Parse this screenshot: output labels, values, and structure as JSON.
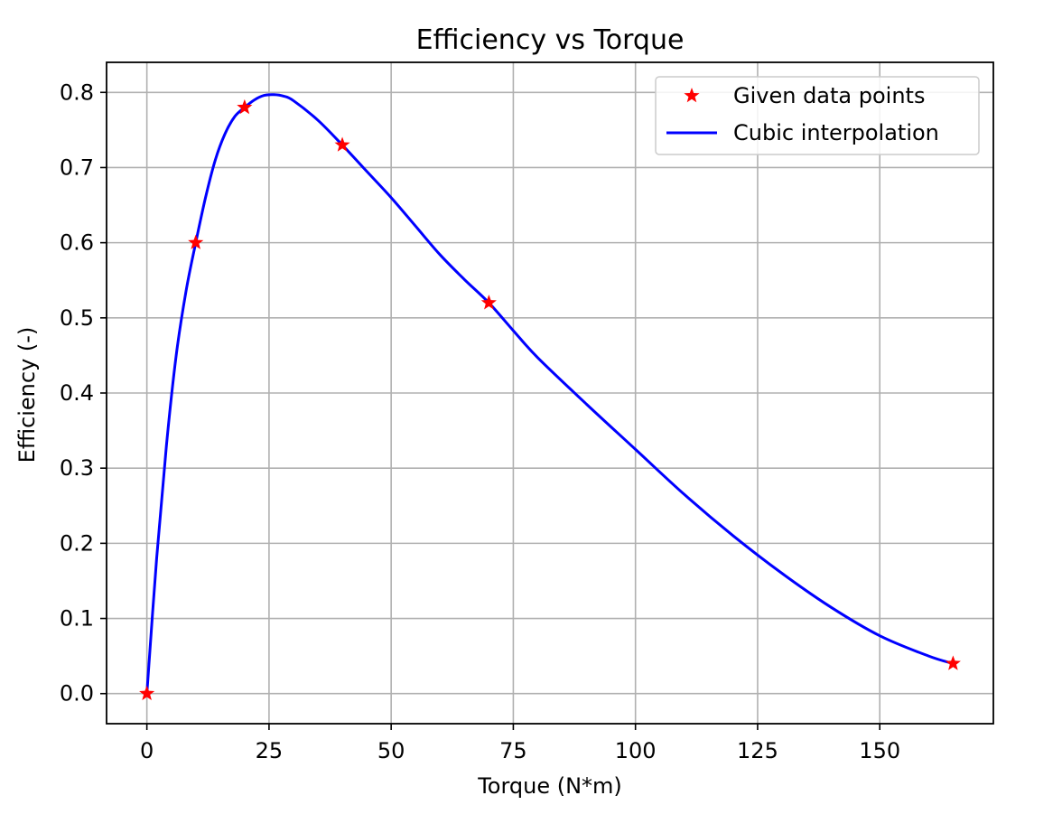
{
  "chart_data": {
    "type": "line",
    "title": "Efficiency vs Torque",
    "xlabel": "Torque (N*m)",
    "ylabel": "Efficiency (-)",
    "xlim": [
      -8.25,
      173.25
    ],
    "ylim": [
      -0.04,
      0.84
    ],
    "xticks": [
      0,
      25,
      50,
      75,
      100,
      125,
      150
    ],
    "xtick_labels": [
      "0",
      "25",
      "50",
      "75",
      "100",
      "125",
      "150"
    ],
    "yticks": [
      0.0,
      0.1,
      0.2,
      0.3,
      0.4,
      0.5,
      0.6,
      0.7,
      0.8
    ],
    "ytick_labels": [
      "0.0",
      "0.1",
      "0.2",
      "0.3",
      "0.4",
      "0.5",
      "0.6",
      "0.7",
      "0.8"
    ],
    "grid": true,
    "legend_position": "top-right",
    "series": [
      {
        "name": "Given data points",
        "kind": "scatter",
        "marker": "star",
        "color": "#ff0000",
        "x": [
          0,
          10,
          20,
          40,
          70,
          165
        ],
        "y": [
          0.0,
          0.6,
          0.78,
          0.73,
          0.52,
          0.04
        ]
      },
      {
        "name": "Cubic interpolation",
        "kind": "line",
        "color": "#0000ff",
        "x": [
          0,
          2,
          4,
          6,
          8,
          10,
          12,
          14,
          16,
          18,
          20,
          22,
          24,
          26,
          28,
          30,
          35,
          40,
          45,
          50,
          55,
          60,
          65,
          70,
          75,
          80,
          90,
          100,
          110,
          120,
          130,
          140,
          150,
          160,
          165
        ],
        "y": [
          0.0,
          0.18,
          0.33,
          0.45,
          0.535,
          0.6,
          0.66,
          0.71,
          0.745,
          0.768,
          0.78,
          0.79,
          0.796,
          0.797,
          0.795,
          0.789,
          0.763,
          0.73,
          0.695,
          0.66,
          0.622,
          0.584,
          0.551,
          0.52,
          0.483,
          0.447,
          0.385,
          0.325,
          0.265,
          0.21,
          0.16,
          0.115,
          0.077,
          0.05,
          0.04
        ]
      }
    ]
  }
}
